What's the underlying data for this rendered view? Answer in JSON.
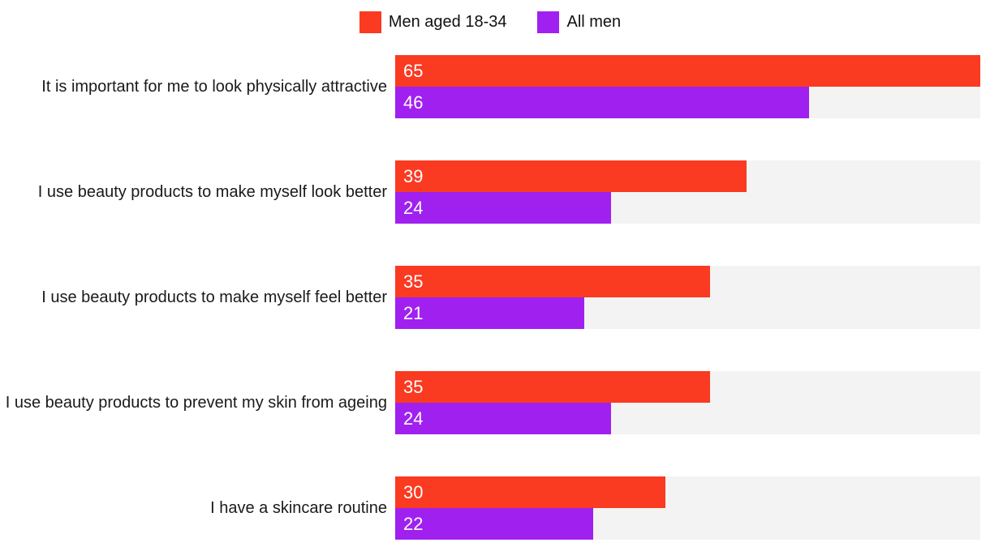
{
  "chart_data": {
    "type": "bar",
    "orientation": "horizontal",
    "title": "",
    "xlabel": "",
    "ylabel": "",
    "max_scale": 65,
    "grid": false,
    "legend_position": "top",
    "track_color": "#f3f3f3",
    "categories": [
      "It is important for me to look physically attractive",
      "I use beauty products to make myself look better",
      "I use beauty products to make myself feel better",
      "I use beauty products to prevent my skin from ageing",
      "I have a skincare routine"
    ],
    "series": [
      {
        "name": "Men aged 18-34",
        "color": "#fa3a21",
        "values": [
          65,
          39,
          35,
          35,
          30
        ]
      },
      {
        "name": "All men",
        "color": "#a020f0",
        "values": [
          46,
          24,
          21,
          24,
          22
        ]
      }
    ]
  }
}
